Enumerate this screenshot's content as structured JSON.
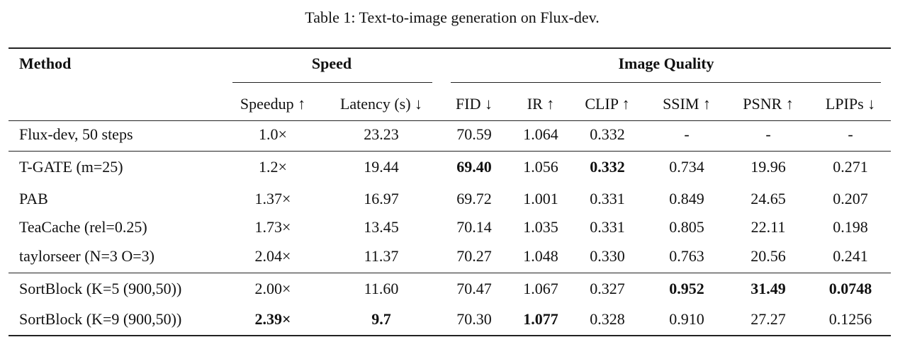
{
  "header": {
    "title": "Table 1: Text-to-image generation on Flux-dev."
  },
  "table": {
    "method_header": "Method",
    "groups": [
      "Speed",
      "Image Quality"
    ],
    "columns": [
      "Speedup ↑",
      "Latency (s) ↓",
      "FID ↓",
      "IR ↑",
      "CLIP ↑",
      "SSIM ↑",
      "PSNR ↑",
      "LPIPs ↓"
    ],
    "rows": [
      [
        "Flux-dev, 50 steps",
        "1.0×",
        "23.23",
        "70.59",
        "1.064",
        "0.332",
        "-",
        "-",
        "-"
      ],
      [
        "T-GATE (m=25)",
        "1.2×",
        "19.44",
        {
          "text": "69.40",
          "bold": true
        },
        "1.056",
        {
          "text": "0.332",
          "bold": true
        },
        "0.734",
        "19.96",
        "0.271"
      ],
      [
        "PAB",
        "1.37×",
        "16.97",
        "69.72",
        "1.001",
        "0.331",
        "0.849",
        "24.65",
        "0.207"
      ],
      [
        "TeaCache (rel=0.25)",
        "1.73×",
        "13.45",
        "70.14",
        "1.035",
        "0.331",
        "0.805",
        "22.11",
        "0.198"
      ],
      [
        "taylorseer (N=3 O=3)",
        "2.04×",
        "11.37",
        "70.27",
        "1.048",
        "0.330",
        "0.763",
        "20.56",
        "0.241"
      ],
      [
        "SortBlock (K=5 (900,50))",
        "2.00×",
        "11.60",
        "70.47",
        "1.067",
        "0.327",
        {
          "text": "0.952",
          "bold": true
        },
        {
          "text": "31.49",
          "bold": true
        },
        {
          "text": "0.0748",
          "bold": true
        }
      ],
      [
        "SortBlock (K=9 (900,50))",
        {
          "text": "2.39×",
          "bold": true
        },
        {
          "text": "9.7",
          "bold": true
        },
        "70.30",
        {
          "text": "1.077",
          "bold": true
        },
        "0.328",
        "0.910",
        "27.27",
        "0.1256"
      ]
    ]
  }
}
